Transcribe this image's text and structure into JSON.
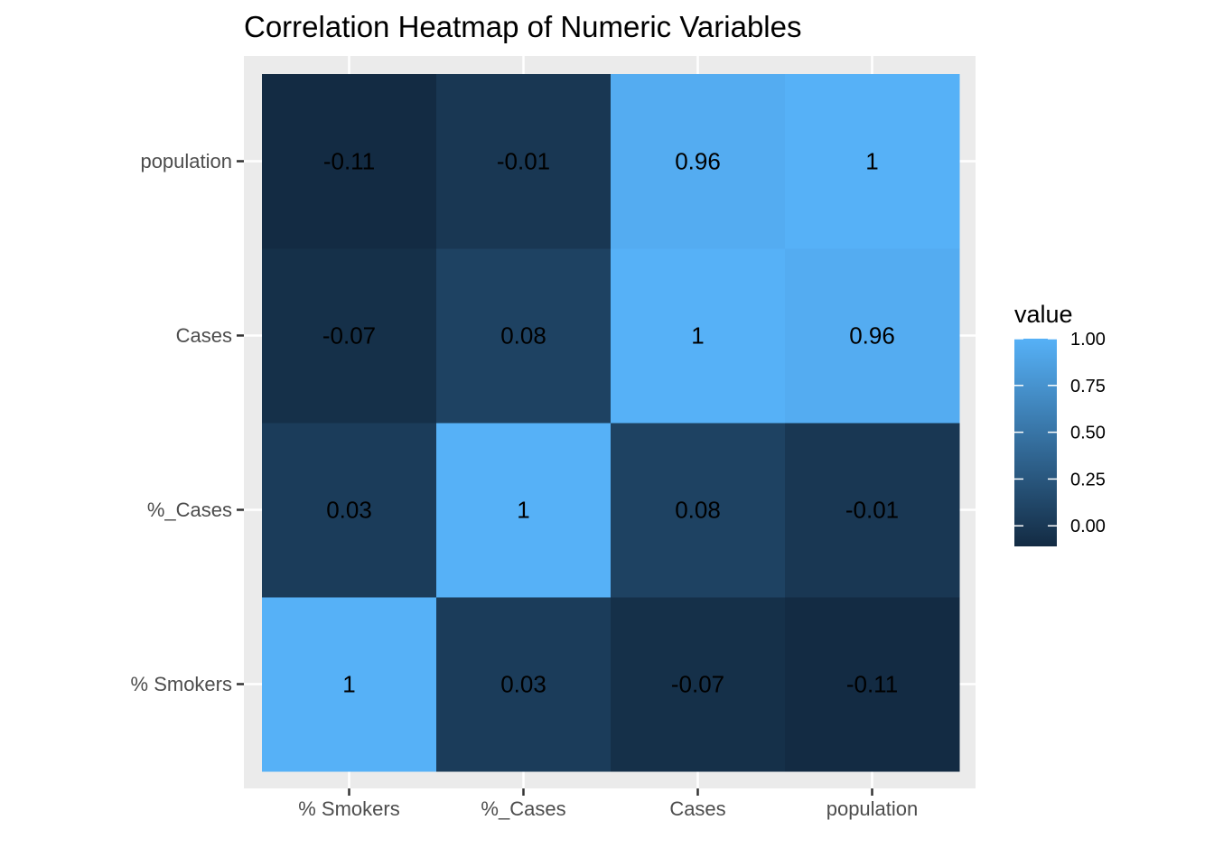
{
  "chart_data": {
    "type": "heatmap",
    "title": "Correlation Heatmap of Numeric Variables",
    "xlabel": "",
    "ylabel": "",
    "x_categories": [
      "% Smokers",
      "%_Cases",
      "Cases",
      "population"
    ],
    "y_categories": [
      "% Smokers",
      "%_Cases",
      "Cases",
      "population"
    ],
    "cells": [
      {
        "x": "% Smokers",
        "y": "% Smokers",
        "value": 1,
        "label": "1"
      },
      {
        "x": "%_Cases",
        "y": "% Smokers",
        "value": 0.03,
        "label": "0.03"
      },
      {
        "x": "Cases",
        "y": "% Smokers",
        "value": -0.07,
        "label": "-0.07"
      },
      {
        "x": "population",
        "y": "% Smokers",
        "value": -0.11,
        "label": "-0.11"
      },
      {
        "x": "% Smokers",
        "y": "%_Cases",
        "value": 0.03,
        "label": "0.03"
      },
      {
        "x": "%_Cases",
        "y": "%_Cases",
        "value": 1,
        "label": "1"
      },
      {
        "x": "Cases",
        "y": "%_Cases",
        "value": 0.08,
        "label": "0.08"
      },
      {
        "x": "population",
        "y": "%_Cases",
        "value": -0.01,
        "label": "-0.01"
      },
      {
        "x": "% Smokers",
        "y": "Cases",
        "value": -0.07,
        "label": "-0.07"
      },
      {
        "x": "%_Cases",
        "y": "Cases",
        "value": 0.08,
        "label": "0.08"
      },
      {
        "x": "Cases",
        "y": "Cases",
        "value": 1,
        "label": "1"
      },
      {
        "x": "population",
        "y": "Cases",
        "value": 0.96,
        "label": "0.96"
      },
      {
        "x": "% Smokers",
        "y": "population",
        "value": -0.11,
        "label": "-0.11"
      },
      {
        "x": "%_Cases",
        "y": "population",
        "value": -0.01,
        "label": "-0.01"
      },
      {
        "x": "Cases",
        "y": "population",
        "value": 0.96,
        "label": "0.96"
      },
      {
        "x": "population",
        "y": "population",
        "value": 1,
        "label": "1"
      }
    ],
    "legend": {
      "title": "value",
      "placement": "right",
      "ticks": [
        1.0,
        0.75,
        0.5,
        0.25,
        0.0
      ],
      "tick_labels": [
        "1.00",
        "0.75",
        "0.50",
        "0.25",
        "0.00"
      ],
      "range": [
        -0.11,
        1.0
      ]
    },
    "grid": true,
    "colors": {
      "low": "#132B43",
      "high": "#56B1F7",
      "panel_background": "#EBEBEB",
      "grid": "#FFFFFF",
      "axis_text": "#4D4D4D"
    }
  }
}
